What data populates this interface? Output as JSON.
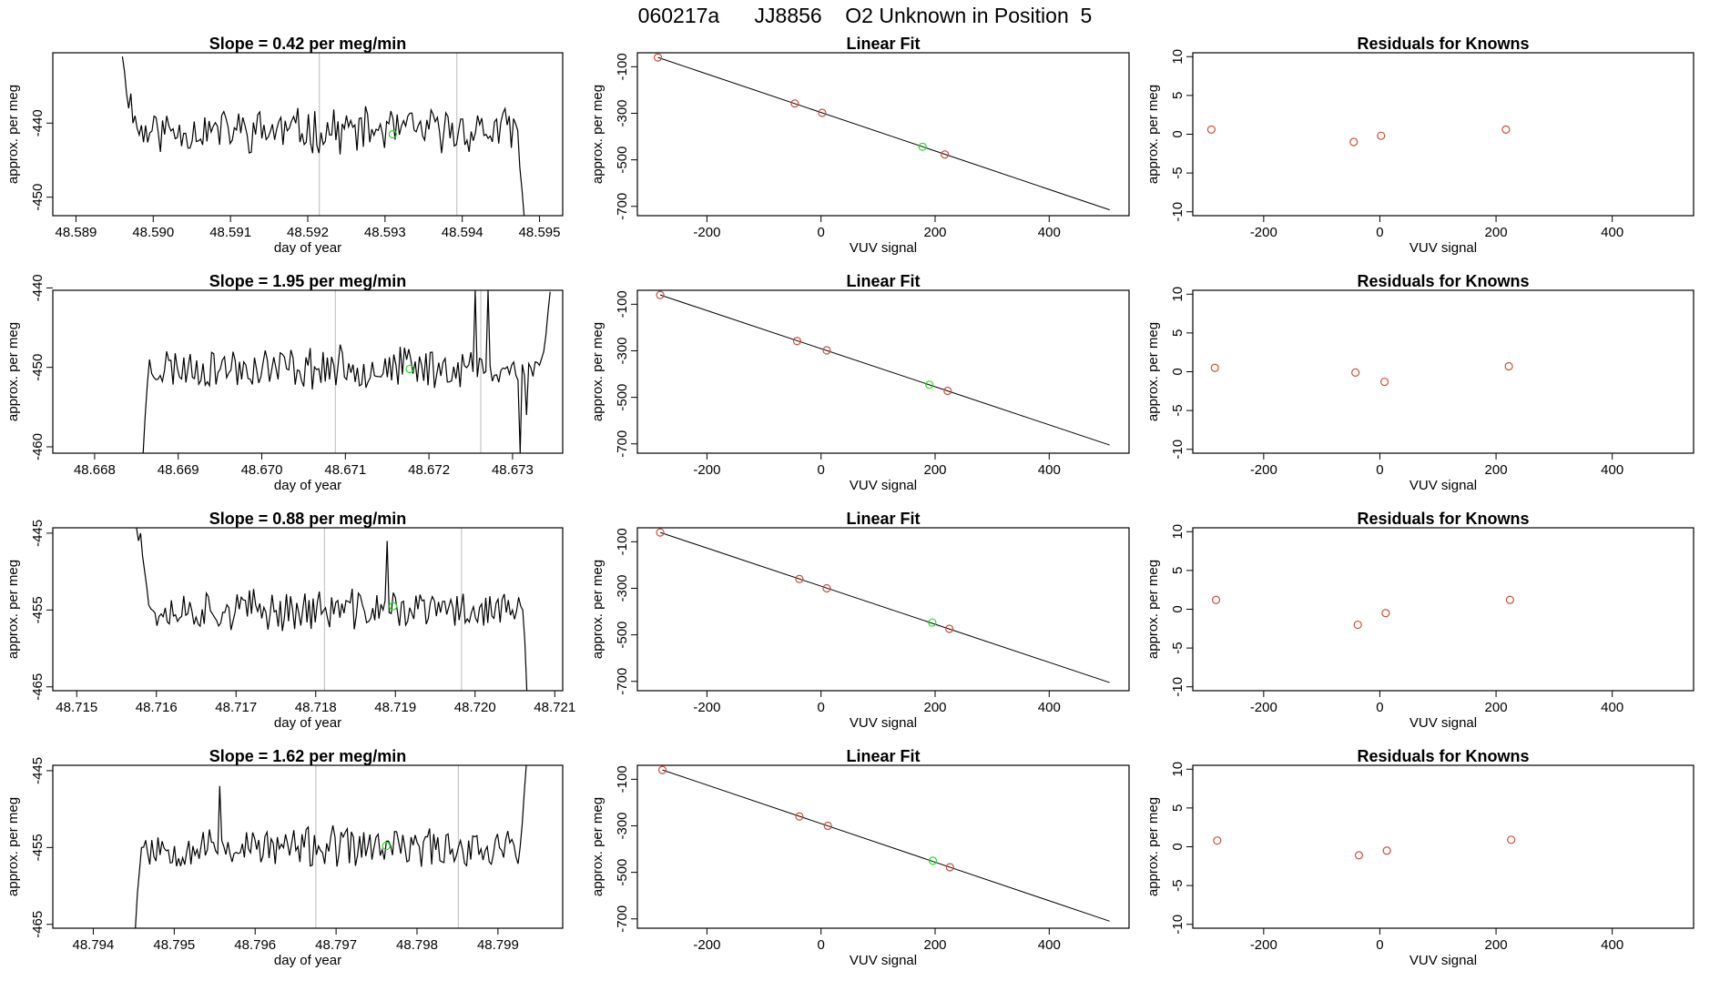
{
  "header": {
    "title": "060217a      JJ8856    O2 Unknown in Position  5"
  },
  "colors": {
    "trace": "#000000",
    "known_point": "#cd4f39",
    "unknown_point": "#22dd22",
    "marker_line": "#bbbbbb",
    "axis": "#000000"
  },
  "chart_data": [
    {
      "type": "line",
      "row": 1,
      "title": "Slope =  0.42  per meg/min",
      "xlabel": "day of year",
      "ylabel": "approx. per meg",
      "xlim": [
        48.5887,
        48.5953
      ],
      "ylim": [
        -452.5,
        -430.5
      ],
      "xticks": [
        48.589,
        48.59,
        48.591,
        48.592,
        48.593,
        48.594,
        48.595
      ],
      "xticklabels": [
        "48.589",
        "48.590",
        "48.591",
        "48.592",
        "48.593",
        "48.594",
        "48.595"
      ],
      "yticks": [
        -440,
        -450
      ],
      "yticklabels": [
        "-440",
        "-450"
      ],
      "x_start": 48.5896,
      "x_end": 48.5948,
      "base": -441,
      "seed": 11,
      "noise": 2.6,
      "start_values": [
        -431,
        -433,
        -436,
        -438,
        -436,
        -440,
        -439
      ],
      "end_values": [
        -441,
        -446,
        -449,
        -452.5
      ],
      "marker_lines": [
        48.59215,
        48.59393
      ],
      "unknown_point": {
        "x": 48.5931,
        "y": -441.5
      }
    },
    {
      "type": "line",
      "row": 2,
      "title": "Slope =  1.95  per meg/min",
      "xlabel": "day of year",
      "ylabel": "approx. per meg",
      "xlim": [
        48.6675,
        48.6736
      ],
      "ylim": [
        -460.8,
        -440.3
      ],
      "xticks": [
        48.668,
        48.669,
        48.67,
        48.671,
        48.672,
        48.673
      ],
      "xticklabels": [
        "48.668",
        "48.669",
        "48.670",
        "48.671",
        "48.672",
        "48.673"
      ],
      "yticks": [
        -440,
        -450,
        -460
      ],
      "yticklabels": [
        "-440",
        "-450",
        "-460"
      ],
      "x_start": 48.66858,
      "x_end": 48.67345,
      "base": -450,
      "seed": 23,
      "noise": 2.3,
      "start_values": [
        -461,
        -456,
        -452,
        -449
      ],
      "end_values": [
        -448,
        -446,
        -443,
        -440.5
      ],
      "spikes": [
        {
          "x": 48.67255,
          "y": -440.3
        },
        {
          "x": 48.67262,
          "y": -449
        },
        {
          "x": 48.6727,
          "y": -440.3
        },
        {
          "x": 48.67278,
          "y": -451
        }
      ],
      "dips": [
        {
          "x": 48.6731,
          "y": -460.8
        },
        {
          "x": 48.67318,
          "y": -456
        }
      ],
      "marker_lines": [
        48.67088,
        48.67262
      ],
      "unknown_point": {
        "x": 48.67177,
        "y": -450.2
      }
    },
    {
      "type": "line",
      "row": 3,
      "title": "Slope =  0.88  per meg/min",
      "xlabel": "day of year",
      "ylabel": "approx. per meg",
      "xlim": [
        48.7147,
        48.7211
      ],
      "ylim": [
        -465.5,
        -444.3
      ],
      "xticks": [
        48.715,
        48.716,
        48.717,
        48.718,
        48.719,
        48.72,
        48.721
      ],
      "xticklabels": [
        "48.715",
        "48.716",
        "48.717",
        "48.718",
        "48.719",
        "48.720",
        "48.721"
      ],
      "yticks": [
        -445,
        -455,
        -465
      ],
      "yticklabels": [
        "-445",
        "-455",
        "-465"
      ],
      "x_start": 48.71575,
      "x_end": 48.72065,
      "base": -455,
      "seed": 37,
      "noise": 2.3,
      "start_values": [
        -444.3,
        -446,
        -445,
        -448,
        -450,
        -452
      ],
      "end_values": [
        -455,
        -459,
        -465.5
      ],
      "spikes": [
        {
          "x": 48.7189,
          "y": -446
        }
      ],
      "marker_lines": [
        48.71811,
        48.71983
      ],
      "unknown_point": {
        "x": 48.71897,
        "y": -454.5
      }
    },
    {
      "type": "line",
      "row": 4,
      "title": "Slope =  1.62  per meg/min",
      "xlabel": "day of year",
      "ylabel": "approx. per meg",
      "xlim": [
        48.7935,
        48.7998
      ],
      "ylim": [
        -465.5,
        -444.3
      ],
      "xticks": [
        48.794,
        48.795,
        48.796,
        48.797,
        48.798,
        48.799
      ],
      "xticklabels": [
        "48.794",
        "48.795",
        "48.796",
        "48.797",
        "48.798",
        "48.799"
      ],
      "yticks": [
        -445,
        -455,
        -465
      ],
      "yticklabels": [
        "-445",
        "-455",
        "-465"
      ],
      "x_start": 48.79452,
      "x_end": 48.79935,
      "base": -455,
      "seed": 53,
      "noise": 2.3,
      "start_values": [
        -465.5,
        -461,
        -458,
        -455
      ],
      "end_values": [
        -455,
        -452,
        -448,
        -444.3
      ],
      "spikes": [
        {
          "x": 48.79555,
          "y": -447
        }
      ],
      "marker_lines": [
        48.79675,
        48.79851
      ],
      "unknown_point": {
        "x": 48.79762,
        "y": -454.8
      }
    },
    {
      "type": "scatter",
      "row": 1,
      "panel": "linear-fit",
      "title": "Linear Fit",
      "xlabel": "VUV signal",
      "ylabel": "approx. per meg",
      "xlim": [
        -322,
        540
      ],
      "ylim": [
        -740,
        -40
      ],
      "xticks": [
        -200,
        0,
        200,
        400
      ],
      "xticklabels": [
        "-200",
        "0",
        "200",
        "400"
      ],
      "yticks": [
        -100,
        -300,
        -500,
        -700
      ],
      "yticklabels": [
        "-100",
        "-300",
        "-500",
        "-700"
      ],
      "fit_line": {
        "x": [
          -286,
          506
        ],
        "y": [
          -60,
          -715
        ]
      },
      "knowns": [
        {
          "x": -286,
          "y": -60
        },
        {
          "x": -46,
          "y": -258
        },
        {
          "x": 2,
          "y": -298
        },
        {
          "x": 217,
          "y": -477
        }
      ],
      "unknown": {
        "x": 178,
        "y": -444
      }
    },
    {
      "type": "scatter",
      "row": 2,
      "panel": "linear-fit",
      "title": "Linear Fit",
      "xlabel": "VUV signal",
      "ylabel": "approx. per meg",
      "xlim": [
        -322,
        540
      ],
      "ylim": [
        -740,
        -40
      ],
      "xticks": [
        -200,
        0,
        200,
        400
      ],
      "xticklabels": [
        "-200",
        "0",
        "200",
        "400"
      ],
      "yticks": [
        -100,
        -300,
        -500,
        -700
      ],
      "yticklabels": [
        "-100",
        "-300",
        "-500",
        "-700"
      ],
      "fit_line": {
        "x": [
          -282,
          506
        ],
        "y": [
          -60,
          -705
        ]
      },
      "knowns": [
        {
          "x": -282,
          "y": -60
        },
        {
          "x": -42,
          "y": -258
        },
        {
          "x": 10,
          "y": -298
        },
        {
          "x": 222,
          "y": -472
        }
      ],
      "unknown": {
        "x": 190,
        "y": -446
      }
    },
    {
      "type": "scatter",
      "row": 3,
      "panel": "linear-fit",
      "title": "Linear Fit",
      "xlabel": "VUV signal",
      "ylabel": "approx. per meg",
      "xlim": [
        -322,
        540
      ],
      "ylim": [
        -740,
        -40
      ],
      "xticks": [
        -200,
        0,
        200,
        400
      ],
      "xticklabels": [
        "-200",
        "0",
        "200",
        "400"
      ],
      "yticks": [
        -100,
        -300,
        -500,
        -700
      ],
      "yticklabels": [
        "-100",
        "-300",
        "-500",
        "-700"
      ],
      "fit_line": {
        "x": [
          -282,
          506
        ],
        "y": [
          -60,
          -705
        ]
      },
      "knowns": [
        {
          "x": -282,
          "y": -60
        },
        {
          "x": -38,
          "y": -260
        },
        {
          "x": 10,
          "y": -300
        },
        {
          "x": 225,
          "y": -474
        }
      ],
      "unknown": {
        "x": 195,
        "y": -447
      }
    },
    {
      "type": "scatter",
      "row": 4,
      "panel": "linear-fit",
      "title": "Linear Fit",
      "xlabel": "VUV signal",
      "ylabel": "approx. per meg",
      "xlim": [
        -322,
        540
      ],
      "ylim": [
        -740,
        -40
      ],
      "xticks": [
        -200,
        0,
        200,
        400
      ],
      "xticklabels": [
        "-200",
        "0",
        "200",
        "400"
      ],
      "yticks": [
        -100,
        -300,
        -500,
        -700
      ],
      "yticklabels": [
        "-100",
        "-300",
        "-500",
        "-700"
      ],
      "fit_line": {
        "x": [
          -278,
          506
        ],
        "y": [
          -60,
          -710
        ]
      },
      "knowns": [
        {
          "x": -278,
          "y": -60
        },
        {
          "x": -38,
          "y": -260
        },
        {
          "x": 12,
          "y": -300
        },
        {
          "x": 226,
          "y": -478
        }
      ],
      "unknown": {
        "x": 196,
        "y": -450
      }
    },
    {
      "type": "scatter",
      "row": 1,
      "panel": "residuals",
      "title": "Residuals for Knowns",
      "xlabel": "VUV signal",
      "ylabel": "approx. per meg",
      "xlim": [
        -322,
        540
      ],
      "ylim": [
        -10.5,
        10.5
      ],
      "xticks": [
        -200,
        0,
        200,
        400
      ],
      "xticklabels": [
        "-200",
        "0",
        "200",
        "400"
      ],
      "yticks": [
        10,
        5,
        0,
        -5,
        -10
      ],
      "yticklabels": [
        "10",
        "5",
        "0",
        "-5",
        "-10"
      ],
      "residuals": [
        {
          "x": -290,
          "y": 0.6
        },
        {
          "x": -45,
          "y": -1.0
        },
        {
          "x": 2,
          "y": -0.2
        },
        {
          "x": 217,
          "y": 0.6
        }
      ]
    },
    {
      "type": "scatter",
      "row": 2,
      "panel": "residuals",
      "title": "Residuals for Knowns",
      "xlabel": "VUV signal",
      "ylabel": "approx. per meg",
      "xlim": [
        -322,
        540
      ],
      "ylim": [
        -10.5,
        10.5
      ],
      "xticks": [
        -200,
        0,
        200,
        400
      ],
      "xticklabels": [
        "-200",
        "0",
        "200",
        "400"
      ],
      "yticks": [
        10,
        5,
        0,
        -5,
        -10
      ],
      "yticklabels": [
        "10",
        "5",
        "0",
        "-5",
        -10
      ],
      "residuals": [
        {
          "x": -284,
          "y": 0.5
        },
        {
          "x": -42,
          "y": -0.1
        },
        {
          "x": 8,
          "y": -1.3
        },
        {
          "x": 222,
          "y": 0.7
        }
      ]
    },
    {
      "type": "scatter",
      "row": 3,
      "panel": "residuals",
      "title": "Residuals for Knowns",
      "xlabel": "VUV signal",
      "ylabel": "approx. per meg",
      "xlim": [
        -322,
        540
      ],
      "ylim": [
        -10.5,
        10.5
      ],
      "xticks": [
        -200,
        0,
        200,
        400
      ],
      "xticklabels": [
        "-200",
        "0",
        "200",
        "400"
      ],
      "yticks": [
        10,
        5,
        0,
        -5,
        -10
      ],
      "yticklabels": [
        "10",
        "5",
        "0",
        "-5",
        "-10"
      ],
      "residuals": [
        {
          "x": -282,
          "y": 1.2
        },
        {
          "x": -38,
          "y": -2.0
        },
        {
          "x": 10,
          "y": -0.5
        },
        {
          "x": 224,
          "y": 1.2
        }
      ]
    },
    {
      "type": "scatter",
      "row": 4,
      "panel": "residuals",
      "title": "Residuals for Knowns",
      "xlabel": "VUV signal",
      "ylabel": "approx. per meg",
      "xlim": [
        -322,
        540
      ],
      "ylim": [
        -10.5,
        10.5
      ],
      "xticks": [
        -200,
        0,
        200,
        400
      ],
      "xticklabels": [
        "-200",
        "0",
        "200",
        "400"
      ],
      "yticks": [
        10,
        5,
        0,
        -5,
        -10
      ],
      "yticklabels": [
        "10",
        "5",
        "0",
        "-5",
        "-10"
      ],
      "residuals": [
        {
          "x": -280,
          "y": 0.8
        },
        {
          "x": -36,
          "y": -1.1
        },
        {
          "x": 12,
          "y": -0.5
        },
        {
          "x": 226,
          "y": 0.9
        }
      ]
    }
  ]
}
